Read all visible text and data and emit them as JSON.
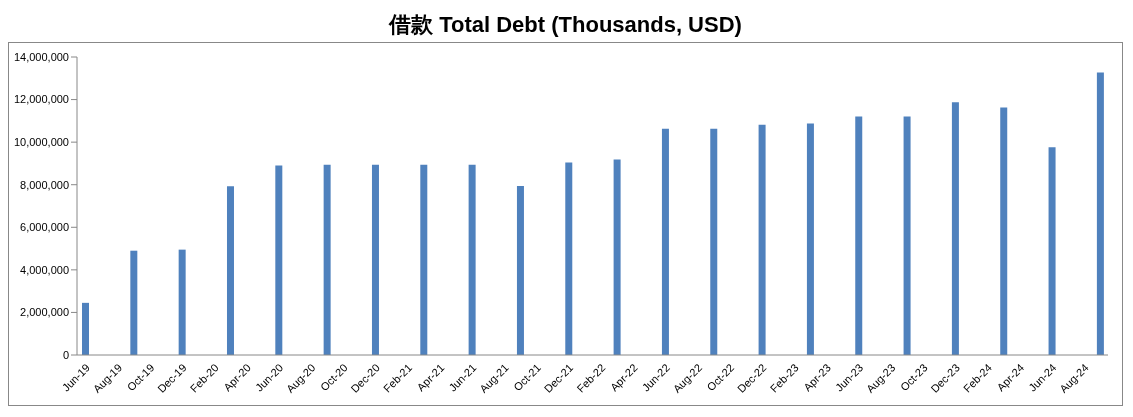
{
  "chart_data": {
    "type": "bar",
    "title": "借款 Total Debt (Thousands, USD)",
    "categories": [
      "Jun-19",
      null,
      "Aug-19",
      null,
      "Oct-19",
      null,
      "Dec-19",
      null,
      "Feb-20",
      null,
      "Apr-20",
      null,
      "Jun-20",
      null,
      "Aug-20",
      null,
      "Oct-20",
      null,
      "Dec-20",
      null,
      "Feb-21",
      null,
      "Apr-21",
      null,
      "Jun-21",
      null,
      "Aug-21",
      null,
      "Oct-21",
      null,
      "Dec-21",
      null,
      "Feb-22",
      null,
      "Apr-22",
      null,
      "Jun-22",
      null,
      "Aug-22",
      null,
      "Oct-22",
      null,
      "Dec-22",
      null,
      "Feb-23",
      null,
      "Apr-23",
      null,
      "Jun-23",
      null,
      "Aug-23",
      null,
      "Oct-23",
      null,
      "Dec-23",
      null,
      "Feb-24",
      null,
      "Apr-24",
      null,
      "Jun-24",
      null,
      "Aug-24",
      null
    ],
    "values": [
      2450000,
      null,
      null,
      4900000,
      null,
      null,
      4950000,
      null,
      null,
      7930000,
      null,
      null,
      8900000,
      null,
      null,
      8940000,
      null,
      null,
      8940000,
      null,
      null,
      8940000,
      null,
      null,
      8940000,
      null,
      null,
      7940000,
      null,
      null,
      9040000,
      null,
      null,
      9180000,
      null,
      null,
      10630000,
      null,
      null,
      10630000,
      null,
      null,
      10820000,
      null,
      null,
      10870000,
      null,
      null,
      11200000,
      null,
      null,
      11200000,
      null,
      null,
      11870000,
      null,
      null,
      11630000,
      null,
      null,
      9760000,
      null,
      null,
      13270000
    ],
    "color": "#4f81bd",
    "ylim": [
      0,
      14000000
    ],
    "yticks": [
      0,
      {
        "value": 2000000,
        "label": "2,000,000"
      },
      {
        "value": 4000000,
        "label": "4,000,000"
      },
      {
        "value": 6000000,
        "label": "6,000,000"
      },
      {
        "value": 8000000,
        "label": "8,000,000"
      },
      {
        "value": 10000000,
        "label": "10,000,000"
      },
      {
        "value": 12000000,
        "label": "12,000,000"
      },
      {
        "value": 14000000,
        "label": "14,000,000"
      }
    ],
    "grid": false,
    "legend": false
  }
}
